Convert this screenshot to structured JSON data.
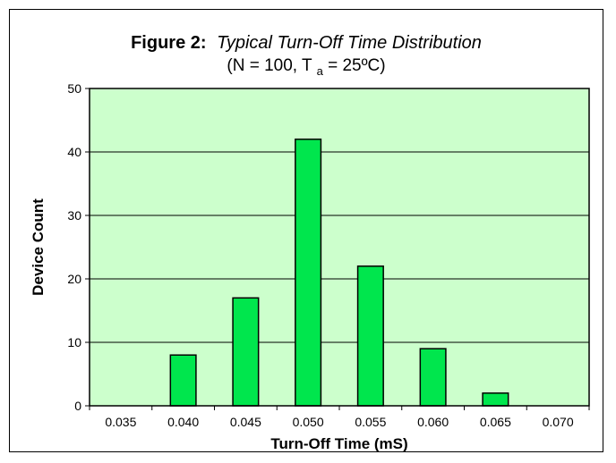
{
  "colors": {
    "plot_background": "#ccffcc",
    "bar_fill": "#00e64d",
    "bar_stroke": "#000000",
    "axis": "#000000"
  },
  "chart_data": {
    "type": "bar",
    "title_prefix": "Figure 2:",
    "title_italic": "Typical Turn-Off Time Distribution",
    "subtitle": {
      "before_subscript": "(N = 100, T",
      "subscript": "a",
      "after_subscript": " = 25ºC)"
    },
    "xlabel": "Turn-Off Time  (mS)",
    "ylabel": "Device Count",
    "ylim": [
      0,
      50
    ],
    "yticks": [
      "0",
      "10",
      "20",
      "30",
      "40",
      "50"
    ],
    "ytick_values": [
      0,
      10,
      20,
      30,
      40,
      50
    ],
    "grid": true,
    "legend": "none",
    "categories": [
      "0.035",
      "0.040",
      "0.045",
      "0.050",
      "0.055",
      "0.060",
      "0.065",
      "0.070"
    ],
    "values": [
      0,
      8,
      17,
      42,
      22,
      9,
      2,
      0
    ]
  }
}
